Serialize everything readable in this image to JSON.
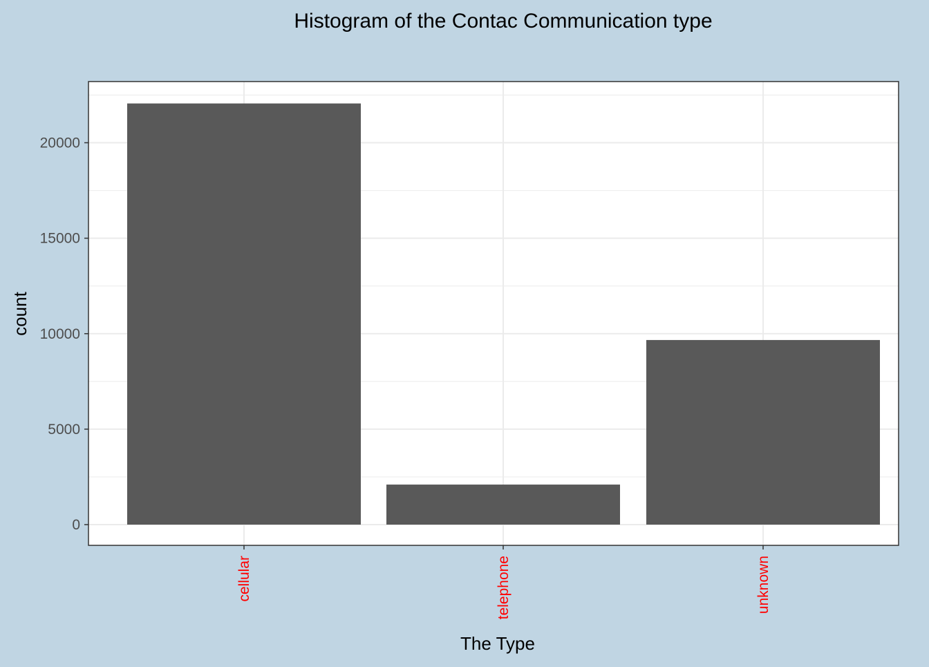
{
  "colors": {
    "background": "#c0d5e3",
    "panel": "#ffffff",
    "bar": "#595959",
    "grid": "#ebebeb",
    "axis_text": "#4d4d4d",
    "title_text": "#000000",
    "x_tick_text": "#ff0000"
  },
  "chart_data": {
    "type": "bar",
    "title": "Histogram of the Contac Communication type",
    "xlabel": "The Type",
    "ylabel": "count",
    "categories": [
      "cellular",
      "telephone",
      "unknown"
    ],
    "values": [
      22057,
      2097,
      9668
    ],
    "ylim": [
      0,
      23000
    ],
    "yticks": [
      0,
      5000,
      10000,
      15000,
      20000
    ],
    "ytick_labels": [
      "0",
      "5000",
      "10000",
      "15000",
      "20000"
    ],
    "grid": true,
    "legend": "none"
  }
}
